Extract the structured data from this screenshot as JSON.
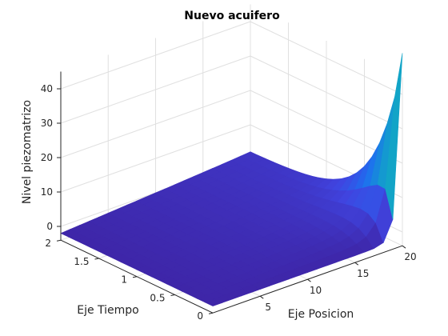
{
  "chart_data": {
    "type": "surface",
    "title": "Nuevo acuifero",
    "xlabel": "Eje Posicion",
    "ylabel": "Eje Tiempo",
    "zlabel": "Nivel piezomatrizo",
    "xlim": [
      0,
      20
    ],
    "ylim": [
      0,
      2
    ],
    "zlim": [
      0,
      40
    ],
    "x_ticks": [
      "5",
      "10",
      "15",
      "20"
    ],
    "y_ticks": [
      "0",
      "0.5",
      "1",
      "1.5",
      "2"
    ],
    "z_ticks": [
      "0",
      "10",
      "20",
      "30",
      "40"
    ],
    "grid": true,
    "colormap": "parula",
    "colors": {
      "low": "#3e26a8",
      "mid": "#1a8fe6",
      "high": "#a5be6a"
    },
    "surface": {
      "x": [
        0,
        1,
        2,
        3,
        4,
        5,
        6,
        7,
        8,
        9,
        10,
        11,
        12,
        13,
        14,
        15,
        16,
        17,
        18,
        19,
        20
      ],
      "y": [
        0,
        0.1,
        0.2,
        0.3,
        0.4,
        0.5,
        0.6,
        0.7,
        0.8,
        0.9,
        1.0,
        1.1,
        1.2,
        1.3,
        1.4,
        1.5,
        1.6,
        1.7,
        1.8,
        1.9,
        2.0
      ],
      "description_of_values": "z(x, t): boundary level 50 at x=20, t=0 decaying to 0 at x=20 by t>0; interior near 0 rising toward x=20"
    }
  }
}
